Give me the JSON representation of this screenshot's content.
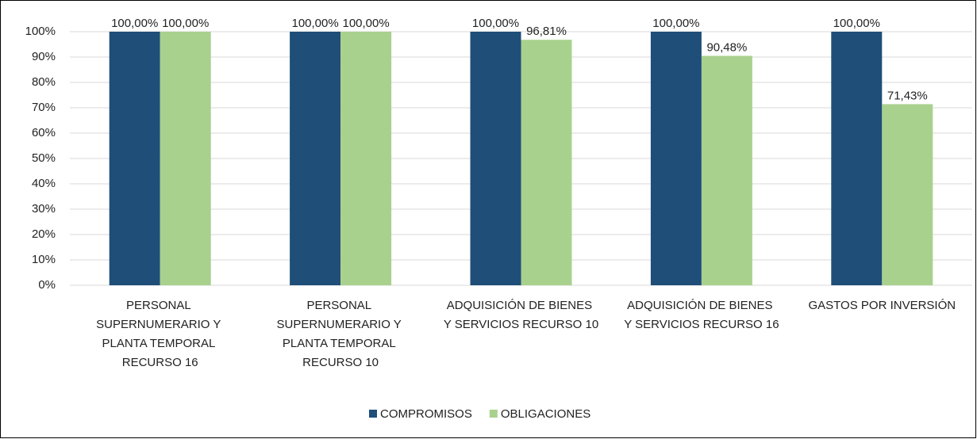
{
  "chart_data": {
    "type": "bar",
    "categories": [
      "PERSONAL SUPERNUMERARIO Y PLANTA TEMPORAL RECURSO 16",
      "PERSONAL SUPERNUMERARIO Y PLANTA TEMPORAL RECURSO 10",
      "ADQUISICIÓN DE BIENES Y SERVICIOS RECURSO 10",
      "ADQUISICIÓN DE BIENES Y SERVICIOS RECURSO 16",
      "GASTOS POR INVERSIÓN"
    ],
    "series": [
      {
        "name": "COMPROMISOS",
        "color": "#1f4e79",
        "values": [
          100,
          100,
          100,
          100,
          100
        ],
        "value_labels": [
          "100,00%",
          "100,00%",
          "100,00%",
          "100,00%",
          "100,00%"
        ]
      },
      {
        "name": "OBLIGACIONES",
        "color": "#a9d18e",
        "values": [
          100,
          100,
          96.81,
          90.48,
          71.43
        ],
        "value_labels": [
          "100,00%",
          "100,00%",
          "96,81%",
          "90,48%",
          "71,43%"
        ]
      }
    ],
    "ylim": [
      0,
      100
    ],
    "yticks": [
      {
        "value": 0,
        "label": "0%"
      },
      {
        "value": 10,
        "label": "10%"
      },
      {
        "value": 20,
        "label": "20%"
      },
      {
        "value": 30,
        "label": "30%"
      },
      {
        "value": 40,
        "label": "40%"
      },
      {
        "value": 50,
        "label": "50%"
      },
      {
        "value": 60,
        "label": "60%"
      },
      {
        "value": 70,
        "label": "70%"
      },
      {
        "value": 80,
        "label": "80%"
      },
      {
        "value": 90,
        "label": "90%"
      },
      {
        "value": 100,
        "label": "100%"
      }
    ],
    "grid": true,
    "legend": "bottom"
  }
}
